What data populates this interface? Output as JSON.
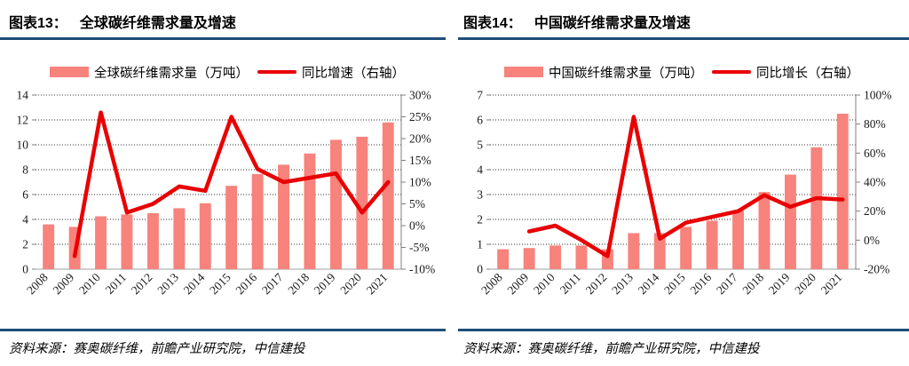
{
  "colors": {
    "bar": "#f7837c",
    "line": "#e90000",
    "rule": "#1f4e79",
    "gridline": "#333333",
    "baseline": "#bfbfbf",
    "right_axis": "#7f7f7f"
  },
  "figures": [
    {
      "caption_label": "图表13：",
      "caption_title": "全球碳纤维需求量及增速",
      "source": "资料来源：赛奥碳纤维，前瞻产业研究院，中信建投"
    },
    {
      "caption_label": "图表14：",
      "caption_title": "中国碳纤维需求量及增速",
      "source": "资料来源：赛奥碳纤维，前瞻产业研究院，中信建投"
    }
  ],
  "chart_data": [
    {
      "type": "bar",
      "title": "全球碳纤维需求量及增速",
      "categories": [
        "2008",
        "2009",
        "2010",
        "2011",
        "2012",
        "2013",
        "2014",
        "2015",
        "2016",
        "2017",
        "2018",
        "2019",
        "2020",
        "2021"
      ],
      "series": [
        {
          "name": "全球碳纤维需求量（万吨）",
          "type": "bar",
          "axis": "left",
          "values": [
            3.6,
            3.4,
            4.25,
            4.4,
            4.5,
            4.9,
            5.3,
            6.7,
            7.65,
            8.4,
            9.3,
            10.4,
            10.65,
            11.8
          ]
        },
        {
          "name": "同比增速（右轴）",
          "type": "line",
          "axis": "right",
          "values": [
            null,
            -7,
            26,
            3,
            5,
            9,
            8,
            25,
            13,
            10,
            11,
            12,
            3,
            10
          ]
        }
      ],
      "left_axis": {
        "min": 0,
        "max": 14,
        "step": 2
      },
      "right_axis": {
        "min": -10,
        "max": 30,
        "step": 5,
        "format": "percent"
      },
      "grid": "dotted-horizontal",
      "legend_position": "top"
    },
    {
      "type": "bar",
      "title": "中国碳纤维需求量及增速",
      "categories": [
        "2008",
        "2009",
        "2010",
        "2011",
        "2012",
        "2013",
        "2014",
        "2015",
        "2016",
        "2017",
        "2018",
        "2019",
        "2020",
        "2021"
      ],
      "series": [
        {
          "name": "中国碳纤维需求量（万吨）",
          "type": "bar",
          "axis": "left",
          "values": [
            0.8,
            0.85,
            0.95,
            0.95,
            0.8,
            1.45,
            1.45,
            1.7,
            1.95,
            2.35,
            3.1,
            3.8,
            4.9,
            6.25
          ]
        },
        {
          "name": "同比增长（右轴）",
          "type": "line",
          "axis": "right",
          "values": [
            null,
            6,
            10,
            0,
            -11,
            85,
            1,
            12,
            16,
            20,
            31,
            23,
            29,
            28
          ]
        }
      ],
      "left_axis": {
        "min": 0,
        "max": 7,
        "step": 1
      },
      "right_axis": {
        "min": -20,
        "max": 100,
        "step": 20,
        "format": "percent"
      },
      "grid": "dotted-horizontal",
      "legend_position": "top"
    }
  ]
}
